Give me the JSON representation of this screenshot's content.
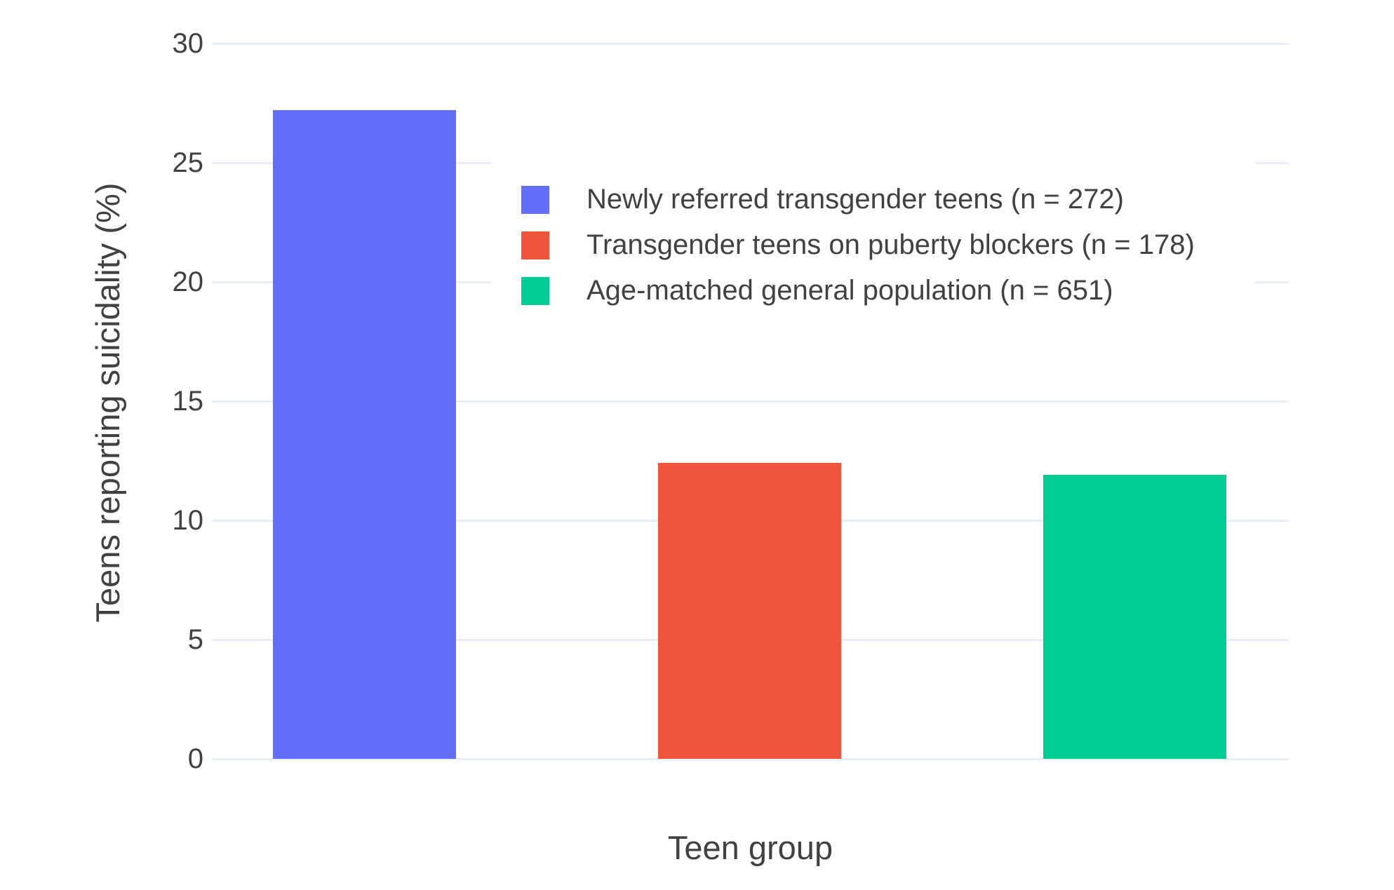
{
  "chart_data": {
    "type": "bar",
    "title": "",
    "xlabel": "Teen group",
    "ylabel": "Teens reporting suicidality (%)",
    "categories": [
      "Newly referred transgender teens (n = 272)",
      "Transgender teens on puberty blockers (n = 178)",
      "Age-matched general population (n = 651)"
    ],
    "values": [
      27.2,
      12.4,
      11.9
    ],
    "colors": [
      "#636EFA",
      "#EF553B",
      "#00CC96"
    ],
    "y_ticks": [
      0,
      5,
      10,
      15,
      20,
      25,
      30
    ],
    "ylim": [
      0,
      30
    ],
    "grid": true,
    "gridline_color": "#e9eef7",
    "text_color": "#414141",
    "background_color": "#ffffff",
    "legend": {
      "position": "inside-top-right",
      "entries": [
        {
          "label": "Newly referred transgender teens (n = 272)",
          "color": "#636EFA"
        },
        {
          "label": "Transgender teens on puberty blockers (n = 178)",
          "color": "#EF553B"
        },
        {
          "label": "Age-matched general population (n = 651)",
          "color": "#00CC96"
        }
      ]
    }
  }
}
